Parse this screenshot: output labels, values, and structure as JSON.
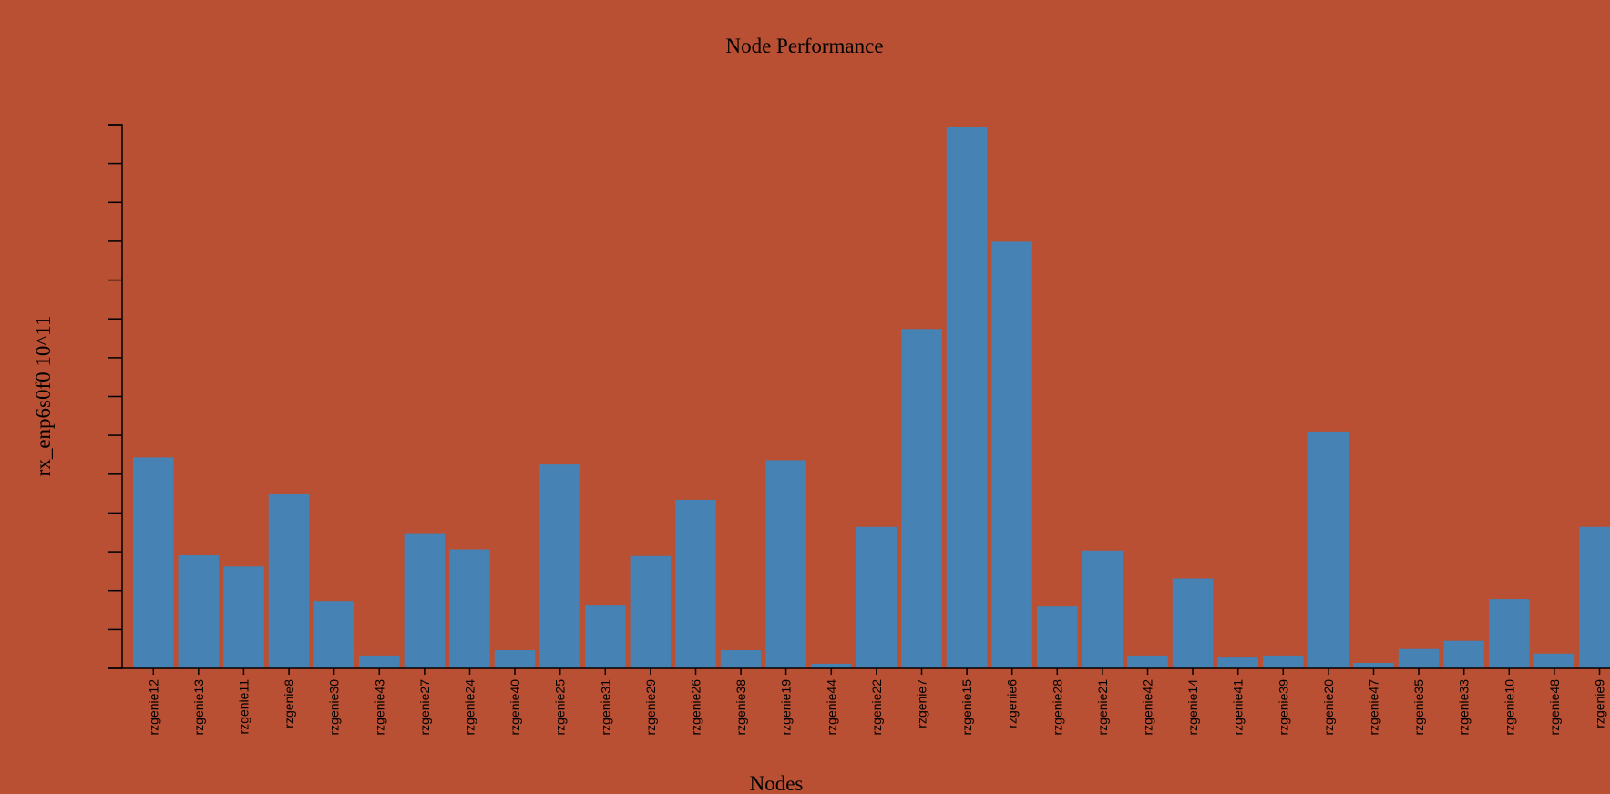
{
  "colors": {
    "background": "#b95034",
    "bar": "#4682b4",
    "axis": "#000000"
  },
  "chart_data": {
    "type": "bar",
    "title": "Node Performance",
    "xlabel": "Nodes",
    "ylabel": "rx_enp6s0f0 10^11",
    "ylim": [
      0,
      14
    ],
    "grid": false,
    "legend": "none",
    "categories": [
      "rzgenie12",
      "rzgenie13",
      "rzgenie11",
      "rzgenie8",
      "rzgenie30",
      "rzgenie43",
      "rzgenie27",
      "rzgenie24",
      "rzgenie40",
      "rzgenie25",
      "rzgenie31",
      "rzgenie29",
      "rzgenie26",
      "rzgenie38",
      "rzgenie19",
      "rzgenie44",
      "rzgenie22",
      "rzgenie7",
      "rzgenie15",
      "rzgenie6",
      "rzgenie28",
      "rzgenie21",
      "rzgenie42",
      "rzgenie14",
      "rzgenie41",
      "rzgenie39",
      "rzgenie20",
      "rzgenie47",
      "rzgenie35",
      "rzgenie33",
      "rzgenie10",
      "rzgenie48",
      "rzgenie9"
    ],
    "values": [
      5.43,
      2.91,
      2.62,
      4.5,
      1.73,
      0.33,
      3.48,
      3.06,
      0.47,
      5.25,
      1.64,
      2.89,
      4.34,
      0.47,
      5.36,
      0.12,
      3.64,
      8.74,
      13.93,
      10.99,
      1.59,
      3.03,
      0.33,
      2.31,
      0.28,
      0.33,
      6.1,
      0.14,
      0.5,
      0.71,
      1.78,
      0.38,
      3.64
    ]
  }
}
